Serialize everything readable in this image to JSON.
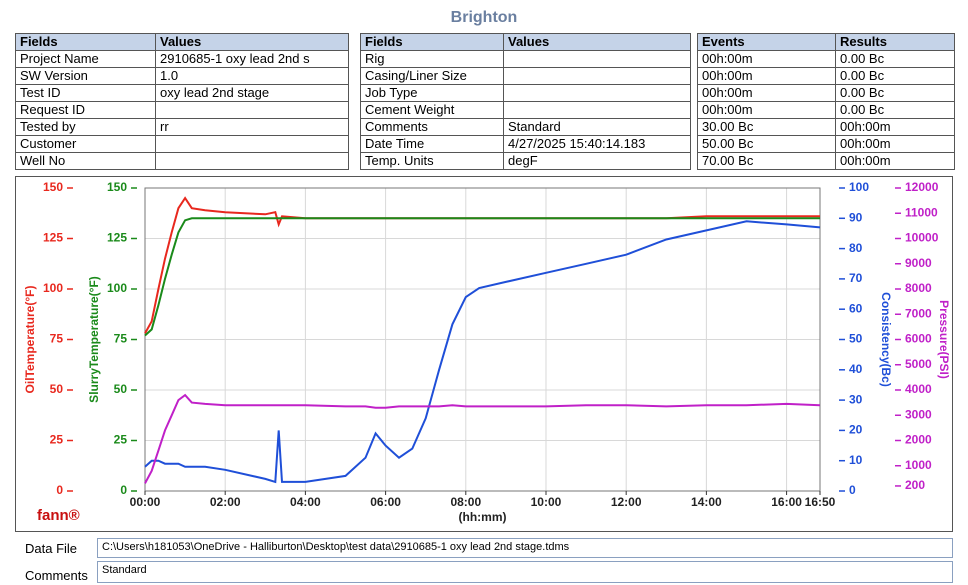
{
  "title": "Brighton",
  "tables": [
    {
      "headers": [
        "Fields",
        "Values"
      ],
      "rows": [
        [
          "Project Name",
          "2910685-1 oxy lead 2nd s"
        ],
        [
          "SW Version",
          "1.0"
        ],
        [
          "Test ID",
          "oxy lead 2nd stage"
        ],
        [
          "Request ID",
          ""
        ],
        [
          "Tested by",
          "rr"
        ],
        [
          "Customer",
          ""
        ],
        [
          "Well No",
          ""
        ]
      ]
    },
    {
      "headers": [
        "Fields",
        "Values"
      ],
      "rows": [
        [
          "Rig",
          ""
        ],
        [
          "Casing/Liner Size",
          ""
        ],
        [
          "Job Type",
          ""
        ],
        [
          "Cement Weight",
          ""
        ],
        [
          "Comments",
          "Standard"
        ],
        [
          "Date Time",
          "4/27/2025 15:40:14.183"
        ],
        [
          "Temp. Units",
          "degF"
        ]
      ]
    },
    {
      "headers": [
        "Events",
        "Results"
      ],
      "rows": [
        [
          "00h:00m",
          "0.00 Bc"
        ],
        [
          "00h:00m",
          "0.00 Bc"
        ],
        [
          "00h:00m",
          "0.00 Bc"
        ],
        [
          "00h:00m",
          "0.00 Bc"
        ],
        [
          "30.00 Bc",
          "00h:00m"
        ],
        [
          "50.00 Bc",
          "00h:00m"
        ],
        [
          "70.00 Bc",
          "00h:00m"
        ]
      ]
    }
  ],
  "chart_data": {
    "type": "line",
    "logo": "fann®",
    "xlabel": "(hh:mm)",
    "xlim": [
      0,
      1010
    ],
    "xticks": [
      {
        "value": 0,
        "label": "00:00"
      },
      {
        "value": 120,
        "label": "02:00"
      },
      {
        "value": 240,
        "label": "04:00"
      },
      {
        "value": 360,
        "label": "06:00"
      },
      {
        "value": 480,
        "label": "08:00"
      },
      {
        "value": 600,
        "label": "10:00"
      },
      {
        "value": 720,
        "label": "12:00"
      },
      {
        "value": 840,
        "label": "14:00"
      },
      {
        "value": 960,
        "label": "16:00"
      },
      {
        "value": 1010,
        "label": "16:50"
      }
    ],
    "grid": true,
    "axes": [
      {
        "label": "OilTemperature(°F)",
        "color": "#e8281e",
        "lim": [
          0,
          150
        ],
        "ticks": [
          0,
          25,
          50,
          75,
          100,
          125,
          150
        ]
      },
      {
        "label": "SlurryTemperature(°F)",
        "color": "#1a8a1a",
        "lim": [
          0,
          150
        ],
        "ticks": [
          0,
          25,
          50,
          75,
          100,
          125,
          150
        ]
      },
      {
        "label": "Consistency(Bc)",
        "color": "#1f4fd8",
        "lim": [
          0,
          100
        ],
        "ticks": [
          0,
          10,
          20,
          30,
          40,
          50,
          60,
          70,
          80,
          90,
          100
        ]
      },
      {
        "label": "Pressure(PSI)",
        "color": "#c020c8",
        "lim": [
          0,
          12000
        ],
        "ticks": [
          200,
          1000,
          2000,
          3000,
          4000,
          5000,
          6000,
          7000,
          8000,
          9000,
          10000,
          11000,
          12000
        ]
      }
    ],
    "x": [
      0,
      10,
      20,
      30,
      40,
      50,
      60,
      70,
      90,
      120,
      180,
      195,
      200,
      205,
      240,
      300,
      330,
      345,
      360,
      380,
      400,
      420,
      440,
      460,
      480,
      500,
      540,
      600,
      660,
      720,
      780,
      840,
      900,
      960,
      1010
    ],
    "series": [
      {
        "name": "OilTemperature",
        "axis": 0,
        "color": "#e8281e",
        "values": [
          78,
          84,
          100,
          115,
          128,
          140,
          145,
          140,
          139,
          138,
          137,
          138,
          132,
          136,
          135,
          135,
          135,
          135,
          135,
          135,
          135,
          135,
          135,
          135,
          135,
          135,
          135,
          135,
          135,
          135,
          135,
          136,
          136,
          136,
          136
        ]
      },
      {
        "name": "SlurryTemperature",
        "axis": 1,
        "color": "#1a8a1a",
        "values": [
          77,
          80,
          92,
          105,
          117,
          128,
          134,
          135,
          135,
          135,
          135,
          135,
          135,
          135,
          135,
          135,
          135,
          135,
          135,
          135,
          135,
          135,
          135,
          135,
          135,
          135,
          135,
          135,
          135,
          135,
          135,
          135,
          135,
          135,
          135
        ]
      },
      {
        "name": "Consistency",
        "axis": 2,
        "color": "#1f4fd8",
        "values": [
          8,
          10,
          10,
          9,
          9,
          9,
          8,
          8,
          8,
          7,
          4,
          3,
          20,
          3,
          3,
          5,
          11,
          19,
          15,
          11,
          14,
          24,
          40,
          55,
          64,
          67,
          69,
          72,
          75,
          78,
          83,
          86,
          89,
          88,
          87
        ]
      },
      {
        "name": "Pressure",
        "axis": 3,
        "color": "#c020c8",
        "values": [
          300,
          800,
          1600,
          2400,
          3000,
          3600,
          3800,
          3500,
          3450,
          3400,
          3400,
          3400,
          3400,
          3400,
          3400,
          3350,
          3350,
          3300,
          3300,
          3350,
          3350,
          3350,
          3350,
          3400,
          3350,
          3350,
          3350,
          3350,
          3400,
          3400,
          3350,
          3400,
          3400,
          3450,
          3400
        ]
      }
    ]
  },
  "footer": {
    "data_file_label": "Data File",
    "data_file": "C:\\Users\\h181053\\OneDrive - Halliburton\\Desktop\\test data\\2910685-1 oxy lead 2nd stage.tdms",
    "comments_label": "Comments",
    "comments": "Standard"
  }
}
